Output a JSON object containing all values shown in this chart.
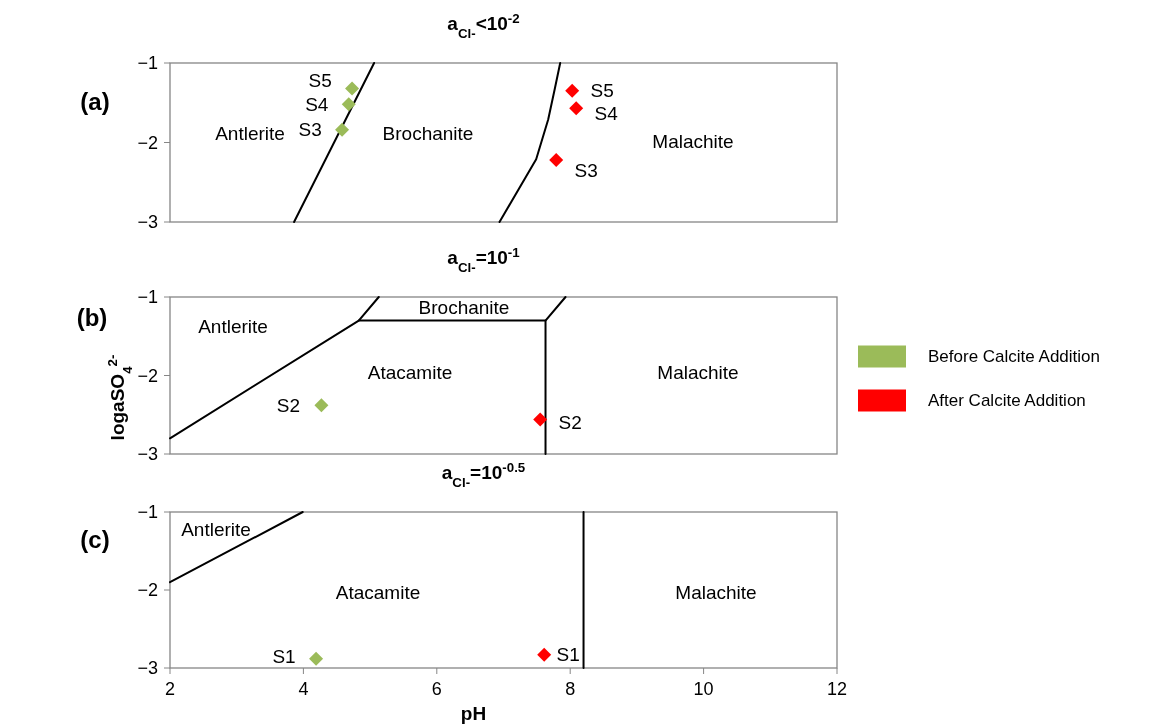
{
  "chart_data": [
    {
      "type": "scatter",
      "title": "a$_{Cl-}$<10$^{-2}$",
      "xlim": [
        2,
        12
      ],
      "ylim": [
        -3,
        -1
      ],
      "yticks": [
        -3,
        -2,
        -1
      ],
      "tick_labels": "y",
      "marker": "diamond",
      "series": [
        {
          "type": "line",
          "color": "#000000",
          "marker": "none",
          "x": [
            3.86,
            5.06
          ],
          "values": [
            -3,
            -1
          ]
        },
        {
          "type": "line",
          "color": "#000000",
          "marker": "none",
          "x": [
            6.94,
            7.49,
            7.67,
            7.77,
            7.85
          ],
          "values": [
            -3,
            -2.21,
            -1.71,
            -1.32,
            -1
          ]
        },
        {
          "color": "#9bbb59",
          "x": [
            4.73,
            4.68,
            4.58
          ],
          "values": [
            -1.32,
            -1.52,
            -1.84
          ]
        },
        {
          "color": "#ff0000",
          "x": [
            8.03,
            8.09,
            7.79
          ],
          "values": [
            -1.35,
            -1.57,
            -2.22
          ]
        }
      ],
      "annotations": [
        "(a)",
        "Antlerite",
        "Brochanite",
        "Malachite",
        {
          "text": "S5",
          "x": 4.73,
          "y": -1.32
        },
        {
          "text": "S4",
          "x": 4.68,
          "y": -1.52
        },
        {
          "text": "S3",
          "x": 4.58,
          "y": -1.84
        },
        {
          "text": "S5",
          "x": 8.03,
          "y": -1.35
        },
        {
          "text": "S4",
          "x": 8.09,
          "y": -1.57
        },
        {
          "text": "S3",
          "x": 7.79,
          "y": -2.22
        }
      ]
    },
    {
      "type": "scatter",
      "title": "a$_{Cl-}$=10$^{-1}$",
      "ylabel": "logaSO$_{4}$$^{2-}$",
      "xlim": [
        2,
        12
      ],
      "ylim": [
        -3,
        -1
      ],
      "yticks": [
        -3,
        -2,
        -1
      ],
      "tick_labels": "y",
      "marker": "diamond",
      "legend": "right",
      "series": [
        {
          "type": "line",
          "color": "#000000",
          "marker": "none",
          "x": [
            2,
            4.83,
            5.13
          ],
          "values": [
            -2.8,
            -1.3,
            -1
          ]
        },
        {
          "type": "line",
          "color": "#000000",
          "marker": "none",
          "x": [
            4.83,
            7.63
          ],
          "values": [
            -1.3,
            -1.3
          ]
        },
        {
          "type": "line",
          "color": "#000000",
          "marker": "none",
          "x": [
            7.93,
            7.63,
            7.63
          ],
          "values": [
            -1,
            -1.3,
            -3
          ]
        },
        {
          "name": "Before Calcite Addition",
          "color": "#9bbb59",
          "x": [
            4.27
          ],
          "values": [
            -2.38
          ]
        },
        {
          "name": "After Calcite Addition",
          "color": "#ff0000",
          "x": [
            7.55
          ],
          "values": [
            -2.56
          ]
        }
      ],
      "annotations": [
        "(b)",
        "Antlerite",
        "Brochanite",
        "Atacamite",
        "Malachite",
        {
          "text": "S2",
          "x": 4.27,
          "y": -2.38
        },
        {
          "text": "S2",
          "x": 7.55,
          "y": -2.56
        }
      ]
    },
    {
      "type": "scatter",
      "title": "a$_{Cl-}$=10$^{-0.5}$",
      "xlabel": "pH",
      "xlim": [
        2,
        12
      ],
      "xticks": [
        2,
        4,
        6,
        8,
        10,
        12
      ],
      "ylim": [
        -3,
        -1
      ],
      "yticks": [
        -3,
        -2,
        -1
      ],
      "marker": "diamond",
      "series": [
        {
          "type": "line",
          "color": "#000000",
          "marker": "none",
          "x": [
            2,
            3.99
          ],
          "values": [
            -1.9,
            -1
          ]
        },
        {
          "type": "line",
          "color": "#000000",
          "marker": "none",
          "x": [
            8.2,
            8.2
          ],
          "values": [
            -3,
            -1
          ]
        },
        {
          "color": "#9bbb59",
          "x": [
            4.19
          ],
          "values": [
            -2.88
          ]
        },
        {
          "color": "#ff0000",
          "x": [
            7.61
          ],
          "values": [
            -2.83
          ]
        }
      ],
      "annotations": [
        "(c)",
        "Antlerite",
        "Atacamite",
        "Malachite",
        {
          "text": "S1",
          "x": 4.19,
          "y": -2.88
        },
        {
          "text": "S1",
          "x": 7.61,
          "y": -2.83
        }
      ]
    }
  ]
}
